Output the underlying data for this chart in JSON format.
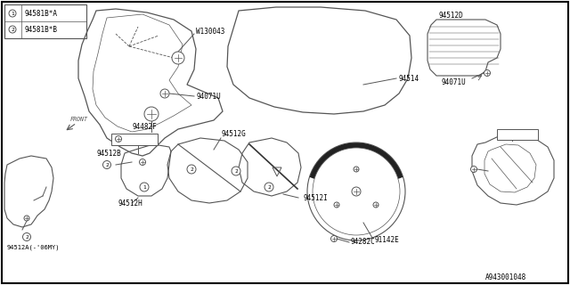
{
  "bg_color": "#ffffff",
  "border_color": "#000000",
  "line_color": "#555555",
  "diagram_id": "A943001048",
  "legend_items": [
    {
      "num": "1",
      "label": "94581B*A"
    },
    {
      "num": "2",
      "label": "94581B*B"
    }
  ]
}
